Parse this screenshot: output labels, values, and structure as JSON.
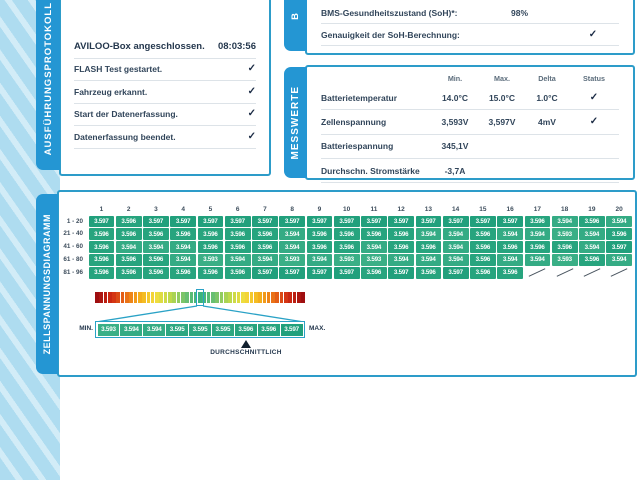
{
  "protocol_panel": {
    "tab_label": "AUSFÜHRUNGSPROTOKOLL",
    "rows": [
      {
        "label": "AVILOO-Box angeschlossen.",
        "value": "08:03:56",
        "bold": true
      },
      {
        "label": "FLASH Test gestartet.",
        "check": true
      },
      {
        "label": "Fahrzeug erkannt.",
        "check": true
      },
      {
        "label": "Start der Datenerfassung.",
        "check": true
      },
      {
        "label": "Datenerfassung beendet.",
        "check": true
      }
    ]
  },
  "soh_panel": {
    "tab_label": "B",
    "rows": [
      {
        "label": "BMS-Gesundheitszustand (SoH)*:",
        "value": "98%"
      },
      {
        "label": "Genauigkeit der SoH-Berechnung:",
        "check": true
      }
    ]
  },
  "messwerte_panel": {
    "tab_label": "MESSWERTE",
    "columns": [
      "Min.",
      "Max.",
      "Delta",
      "Status"
    ],
    "rows": [
      {
        "label": "Batterietemperatur",
        "min": "14.0°C",
        "max": "15.0°C",
        "delta": "1.0°C",
        "check": true
      },
      {
        "label": "Zellenspannung",
        "min": "3,593V",
        "max": "3,597V",
        "delta": "4mV",
        "check": true
      },
      {
        "label": "Batteriespannung",
        "min": "345,1V"
      },
      {
        "label": "Durchschn. Stromstärke",
        "min": "-3,7A"
      }
    ]
  },
  "cell_diagram": {
    "tab_label": "ZELLSPANNUNGSDIAGRAMM",
    "columns": [
      "1",
      "2",
      "3",
      "4",
      "5",
      "6",
      "7",
      "8",
      "9",
      "10",
      "11",
      "12",
      "13",
      "14",
      "15",
      "16",
      "17",
      "18",
      "19",
      "20"
    ],
    "rows": [
      {
        "label": "1 - 20",
        "values": [
          "3.597",
          "3.596",
          "3.597",
          "3.597",
          "3.597",
          "3.597",
          "3.597",
          "3.597",
          "3.597",
          "3.597",
          "3.597",
          "3.597",
          "3.597",
          "3.597",
          "3.597",
          "3.597",
          "3.596",
          "3.594",
          "3.596",
          "3.594"
        ]
      },
      {
        "label": "21 - 40",
        "values": [
          "3.596",
          "3.596",
          "3.596",
          "3.596",
          "3.596",
          "3.596",
          "3.596",
          "3.594",
          "3.596",
          "3.596",
          "3.596",
          "3.596",
          "3.594",
          "3.594",
          "3.596",
          "3.594",
          "3.594",
          "3.593",
          "3.594",
          "3.596"
        ]
      },
      {
        "label": "41 - 60",
        "values": [
          "3.596",
          "3.594",
          "3.594",
          "3.594",
          "3.596",
          "3.596",
          "3.596",
          "3.594",
          "3.596",
          "3.596",
          "3.594",
          "3.596",
          "3.596",
          "3.594",
          "3.596",
          "3.596",
          "3.596",
          "3.596",
          "3.594",
          "3.597"
        ]
      },
      {
        "label": "61 - 80",
        "values": [
          "3.596",
          "3.596",
          "3.596",
          "3.594",
          "3.593",
          "3.594",
          "3.594",
          "3.593",
          "3.594",
          "3.593",
          "3.593",
          "3.594",
          "3.594",
          "3.594",
          "3.596",
          "3.594",
          "3.594",
          "3.593",
          "3.596",
          "3.594"
        ]
      },
      {
        "label": "81 - 96",
        "values": [
          "3.596",
          "3.596",
          "3.596",
          "3.596",
          "3.596",
          "3.596",
          "3.597",
          "3.597",
          "3.597",
          "3.597",
          "3.596",
          "3.597",
          "3.596",
          "3.597",
          "3.596",
          "3.596"
        ]
      }
    ],
    "scale": {
      "segments": 49,
      "stops": [
        "#9e0e10",
        "#cf2a12",
        "#ea6f18",
        "#f5b31c",
        "#f2dd3e",
        "#bcd94b",
        "#6fc170",
        "#3ab47e"
      ]
    },
    "magnifier": {
      "min_label": "MIN.",
      "max_label": "MAX.",
      "values": [
        "3.593",
        "3.594",
        "3.594",
        "3.595",
        "3.595",
        "3.595",
        "3.596",
        "3.596",
        "3.597"
      ],
      "avg_label": "DURCHSCHNITTLICH",
      "avg_index": 6
    },
    "value_range": {
      "min": 3.593,
      "max": 3.597
    }
  },
  "colors": {
    "tab_blue": "#2496d3",
    "panel_border": "#2d9cc9",
    "cell_green_low": "#3aaf86",
    "cell_green_high": "#21a07c",
    "band_blue": "#aedcf0",
    "text_dark": "#31455a"
  }
}
